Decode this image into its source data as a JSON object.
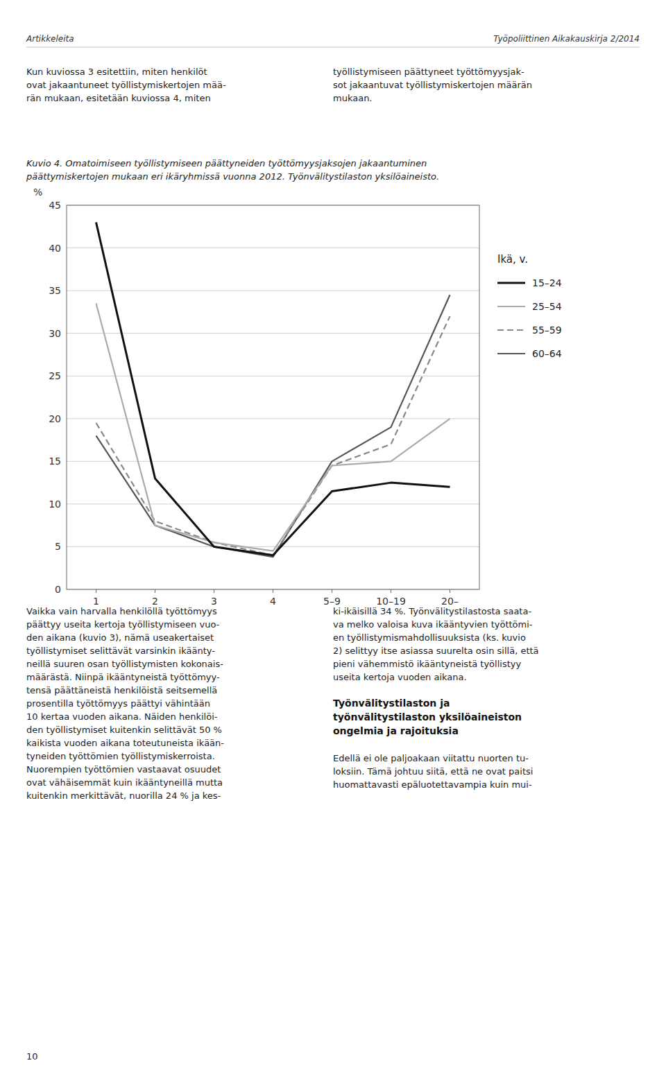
{
  "chart_data": {
    "type": "line",
    "title": "Kuvio 4. Omatoimiseen työllistymiseen päättyneiden työttömyysjaksojen jakaantuminen\npäättymiskertojen mukaan eri ikäryhmissä vuonna 2012. Työnvälitystilaston yksilöaineisto.",
    "categories": [
      "1",
      "2",
      "3",
      "4",
      "5–9",
      "10–19",
      "20–"
    ],
    "series": [
      {
        "name": "15–24",
        "color": "#111111",
        "line_style": "solid",
        "values": [
          43,
          13,
          5,
          4,
          11.5,
          12.5,
          12
        ]
      },
      {
        "name": "25–54",
        "color": "#aaaaaa",
        "line_style": "solid",
        "values": [
          33.5,
          7.5,
          5.5,
          4.5,
          14.5,
          15,
          20
        ]
      },
      {
        "name": "55–59",
        "color": "#888888",
        "line_style": "dashed",
        "values": [
          19.5,
          8.0,
          5.5,
          4.0,
          14.5,
          17,
          32
        ]
      },
      {
        "name": "60–64",
        "color": "#555555",
        "line_style": "solid",
        "values": [
          18,
          7.5,
          5.0,
          3.8,
          15,
          19,
          34.5
        ]
      }
    ],
    "ylim": [
      0,
      45
    ],
    "yticks": [
      0,
      5,
      10,
      15,
      20,
      25,
      30,
      35,
      40,
      45
    ],
    "ylabel": "%",
    "legend_title": "Ikä, v.",
    "legend": "right",
    "grid": true
  },
  "page_header_left": "Artikkeleita",
  "page_header_right": "Työpoliittinen Aikakauskirja 2/2014",
  "body_text_left": "Kun kuviossa 3 esitettiin, miten henkilöt\novat jakaantuneet työllistymiskertojen mää-\nrän mukaan, esitetään kuviossa 4, miten",
  "body_text_right": "työllistymiseen päättyneet työttömyysjak-\nsot jakaantuvat työllistymiskertojen määrän\nmukaan.",
  "bottom_text_left": "Vaikka vain harvalla henkilöllä työttömyys\npäättyy useita kertoja työllistymiseen vuo-\nden aikana (kuvio 3), nämä useakertaiset\ntyöllistymiset selittävät varsinkin ikäänty-\nneillä suuren osan työllistymisten kokonais-\nmäärästä. Niinpä ikääntyneistä työttömyy-\ntensä päättäneistä henkilöistä seitsemellä\nprosentilla työttömyys päättyi vähintään\n10 kertaa vuoden aikana. Näiden henkilöi-\nden työllistymiset kuitenkin selittävät 50 %\nkaikista vuoden aikana toteutuneista ikään-\ntyneiden työttömien työllistymiskerroista.\nNuorempien työttömien vastaavat osuudet\novat vähäisemmät kuin ikääntyneillä mutta\nkuitenkin merkittävät, nuorilla 24 % ja kes-",
  "bottom_text_right_1": "ki-ikäisillä 34 %. Työnvälitystilastosta saata-\nva melko valoisa kuva ikääntyvien työttömi-\nen työllistymismahdollisuuksista (ks. kuvio\n2) selittyy itse asiassa suurelta osin sillä, että\npieni vähemmistö ikääntyneistä työllistyy\nuseita kertoja vuoden aikana.",
  "heading": "Työnvälitystilaston ja\ntyönvälitystilaston yksilöaineiston\nongelmia ja rajoituksia",
  "bottom_text_right_2": "Edellä ei ole paljoakaan viitattu nuorten tu-\nloksiin. Tämä johtuu siitä, että ne ovat paitsi\nhuomattavasti epäluotettavampia kuin mui-",
  "footer_page_number": "10"
}
